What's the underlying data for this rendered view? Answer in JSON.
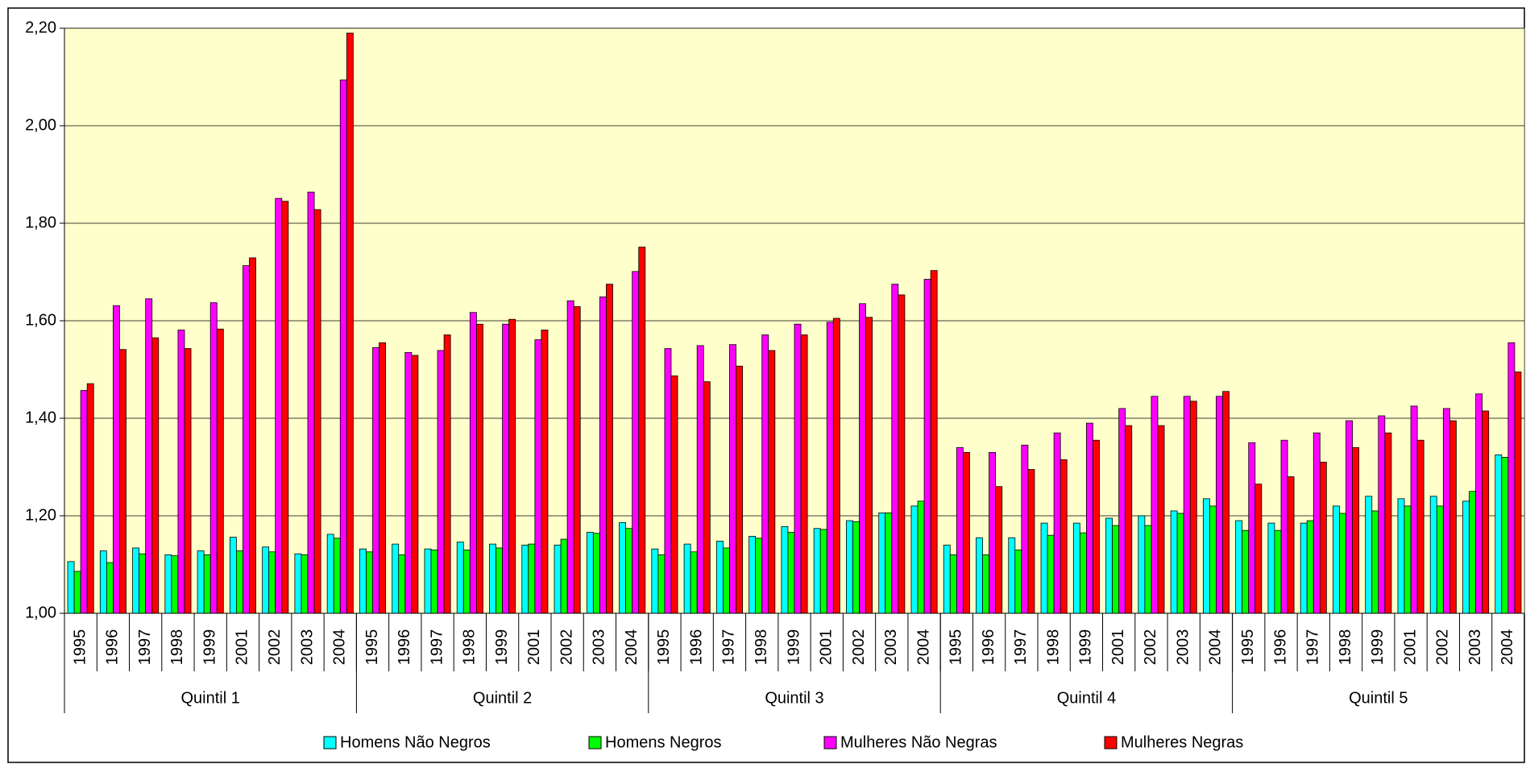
{
  "chart_data": {
    "type": "bar",
    "categories": [
      "1995",
      "1996",
      "1997",
      "1998",
      "1999",
      "2001",
      "2002",
      "2003",
      "2004",
      "1995",
      "1996",
      "1997",
      "1998",
      "1999",
      "2001",
      "2002",
      "2003",
      "2004",
      "1995",
      "1996",
      "1997",
      "1998",
      "1999",
      "2001",
      "2002",
      "2003",
      "2004",
      "1995",
      "1996",
      "1997",
      "1998",
      "1999",
      "2001",
      "2002",
      "2003",
      "2004",
      "1995",
      "1996",
      "1997",
      "1998",
      "1999",
      "2001",
      "2002",
      "2003",
      "2004"
    ],
    "groups": [
      "Quintil 1",
      "Quintil 2",
      "Quintil 3",
      "Quintil 4",
      "Quintil 5"
    ],
    "series": [
      {
        "name": "Homens Não Negros",
        "color": "#00ffff",
        "values": [
          1.106,
          1.128,
          1.134,
          1.12,
          1.128,
          1.156,
          1.136,
          1.122,
          1.162,
          1.132,
          1.142,
          1.132,
          1.146,
          1.142,
          1.14,
          1.14,
          1.166,
          1.186,
          1.132,
          1.142,
          1.148,
          1.158,
          1.178,
          1.174,
          1.19,
          1.206,
          1.22,
          1.14,
          1.155,
          1.155,
          1.185,
          1.185,
          1.195,
          1.2,
          1.21,
          1.235,
          1.19,
          1.185,
          1.185,
          1.22,
          1.24,
          1.235,
          1.24,
          1.23,
          1.325
        ]
      },
      {
        "name": "Homens Negros",
        "color": "#00ff00",
        "values": [
          1.086,
          1.104,
          1.122,
          1.118,
          1.12,
          1.128,
          1.126,
          1.12,
          1.154,
          1.126,
          1.12,
          1.13,
          1.13,
          1.134,
          1.142,
          1.152,
          1.164,
          1.174,
          1.12,
          1.126,
          1.134,
          1.154,
          1.166,
          1.172,
          1.188,
          1.206,
          1.23,
          1.12,
          1.12,
          1.13,
          1.16,
          1.165,
          1.18,
          1.18,
          1.205,
          1.22,
          1.17,
          1.17,
          1.19,
          1.205,
          1.21,
          1.22,
          1.22,
          1.25,
          1.32
        ]
      },
      {
        "name": "Mulheres Não Negras",
        "color": "#ff00ff",
        "values": [
          1.457,
          1.631,
          1.645,
          1.581,
          1.637,
          1.713,
          1.851,
          1.864,
          2.094,
          1.545,
          1.535,
          1.539,
          1.617,
          1.593,
          1.561,
          1.641,
          1.649,
          1.701,
          1.543,
          1.549,
          1.551,
          1.571,
          1.593,
          1.597,
          1.635,
          1.675,
          1.685,
          1.34,
          1.33,
          1.345,
          1.37,
          1.39,
          1.42,
          1.445,
          1.445,
          1.445,
          1.35,
          1.355,
          1.37,
          1.395,
          1.405,
          1.425,
          1.42,
          1.45,
          1.555
        ]
      },
      {
        "name": "Mulheres Negras",
        "color": "#ff0000",
        "values": [
          1.471,
          1.541,
          1.565,
          1.543,
          1.583,
          1.729,
          1.845,
          1.828,
          2.19,
          1.555,
          1.529,
          1.571,
          1.593,
          1.603,
          1.581,
          1.629,
          1.675,
          1.751,
          1.487,
          1.475,
          1.507,
          1.539,
          1.571,
          1.605,
          1.607,
          1.653,
          1.703,
          1.33,
          1.26,
          1.295,
          1.315,
          1.355,
          1.385,
          1.385,
          1.435,
          1.455,
          1.265,
          1.28,
          1.31,
          1.34,
          1.37,
          1.355,
          1.395,
          1.415,
          1.495
        ]
      }
    ],
    "ylim": [
      1,
      2.2
    ],
    "yticks": [
      {
        "value": 1,
        "label": "1,00"
      },
      {
        "value": 1.2,
        "label": "1,20"
      },
      {
        "value": 1.4,
        "label": "1,40"
      },
      {
        "value": 1.6,
        "label": "1,60"
      },
      {
        "value": 1.8,
        "label": "1,80"
      },
      {
        "value": 2,
        "label": "2,00"
      },
      {
        "value": 2.2,
        "label": "2,20"
      }
    ],
    "grid": true,
    "background": "#ffffcc",
    "legend": "bottom"
  }
}
